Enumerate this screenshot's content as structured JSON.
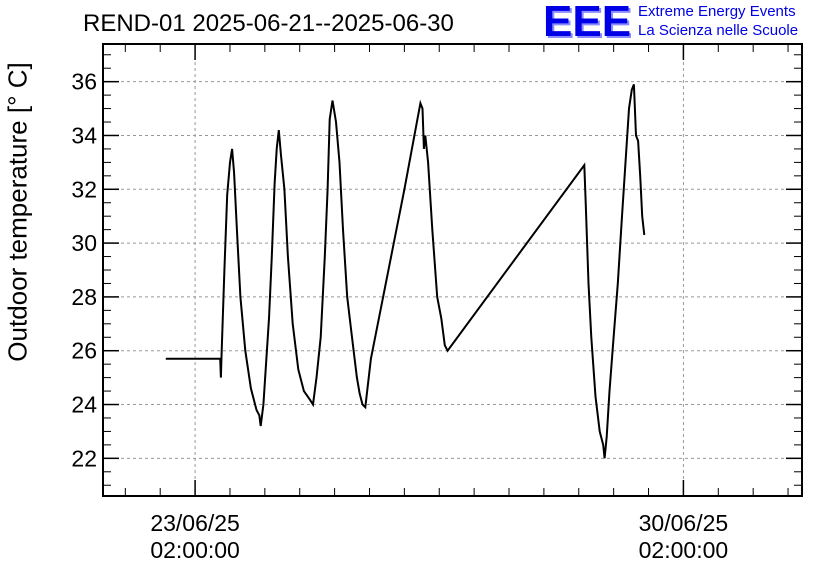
{
  "chart_data": {
    "type": "line",
    "title": "REND-01 2025-06-21--2025-06-30",
    "ylabel": "Outdoor temperature [° C]",
    "xlabel": "",
    "ylim": [
      20.6,
      37.4
    ],
    "yticks": [
      22,
      24,
      26,
      28,
      30,
      32,
      34,
      36
    ],
    "xlim_days_from_first_tick": [
      -1.32,
      8.7
    ],
    "xticks": [
      {
        "day": 0,
        "date": "23/06/25",
        "time": "02:00:00"
      },
      {
        "day": 7,
        "date": "30/06/25",
        "time": "02:00:00"
      }
    ],
    "grid": true,
    "series": [
      {
        "name": "",
        "color": "#000000",
        "points": [
          [
            -0.42,
            25.7
          ],
          [
            0.36,
            25.7
          ],
          [
            0.37,
            25.0
          ],
          [
            0.38,
            25.9
          ],
          [
            0.42,
            29.0
          ],
          [
            0.46,
            31.8
          ],
          [
            0.5,
            33.0
          ],
          [
            0.53,
            33.5
          ],
          [
            0.56,
            32.6
          ],
          [
            0.6,
            30.5
          ],
          [
            0.65,
            28.0
          ],
          [
            0.72,
            26.0
          ],
          [
            0.8,
            24.6
          ],
          [
            0.88,
            23.8
          ],
          [
            0.92,
            23.6
          ],
          [
            0.94,
            23.2
          ],
          [
            0.98,
            24.0
          ],
          [
            1.02,
            25.6
          ],
          [
            1.06,
            27.2
          ],
          [
            1.1,
            29.5
          ],
          [
            1.14,
            32.2
          ],
          [
            1.17,
            33.5
          ],
          [
            1.2,
            34.2
          ],
          [
            1.23,
            33.3
          ],
          [
            1.28,
            32.0
          ],
          [
            1.33,
            29.5
          ],
          [
            1.4,
            27.0
          ],
          [
            1.48,
            25.3
          ],
          [
            1.56,
            24.5
          ],
          [
            1.64,
            24.2
          ],
          [
            1.69,
            24.0
          ],
          [
            1.74,
            25.0
          ],
          [
            1.8,
            26.5
          ],
          [
            1.86,
            29.5
          ],
          [
            1.9,
            32.0
          ],
          [
            1.93,
            34.6
          ],
          [
            1.97,
            35.3
          ],
          [
            2.02,
            34.5
          ],
          [
            2.07,
            33.0
          ],
          [
            2.12,
            30.5
          ],
          [
            2.18,
            28.0
          ],
          [
            2.25,
            26.5
          ],
          [
            2.32,
            25.0
          ],
          [
            2.36,
            24.4
          ],
          [
            2.4,
            24.0
          ],
          [
            2.44,
            23.9
          ],
          [
            2.48,
            24.8
          ],
          [
            2.52,
            25.7
          ],
          [
            3.0,
            32.0
          ],
          [
            3.23,
            35.2
          ],
          [
            3.26,
            35.0
          ],
          [
            3.28,
            33.5
          ],
          [
            3.3,
            34.0
          ],
          [
            3.34,
            33.0
          ],
          [
            3.4,
            30.5
          ],
          [
            3.47,
            28.0
          ],
          [
            3.53,
            27.2
          ],
          [
            3.58,
            26.2
          ],
          [
            3.62,
            26.0
          ],
          [
            5.58,
            32.9
          ],
          [
            5.6,
            31.5
          ],
          [
            5.64,
            28.5
          ],
          [
            5.68,
            26.5
          ],
          [
            5.74,
            24.3
          ],
          [
            5.8,
            23.0
          ],
          [
            5.85,
            22.5
          ],
          [
            5.87,
            22.0
          ],
          [
            5.9,
            22.8
          ],
          [
            5.94,
            24.5
          ],
          [
            6.0,
            26.5
          ],
          [
            6.06,
            28.5
          ],
          [
            6.12,
            31.0
          ],
          [
            6.17,
            33.0
          ],
          [
            6.22,
            35.0
          ],
          [
            6.26,
            35.7
          ],
          [
            6.29,
            35.9
          ],
          [
            6.32,
            34.0
          ],
          [
            6.35,
            33.8
          ],
          [
            6.38,
            32.5
          ],
          [
            6.41,
            31.0
          ],
          [
            6.44,
            30.3
          ]
        ]
      }
    ]
  },
  "logo": {
    "text": "EEE",
    "line1": "Extreme Energy Events",
    "line2": "La Scienza nelle Scuole",
    "color": "#0000e6"
  }
}
